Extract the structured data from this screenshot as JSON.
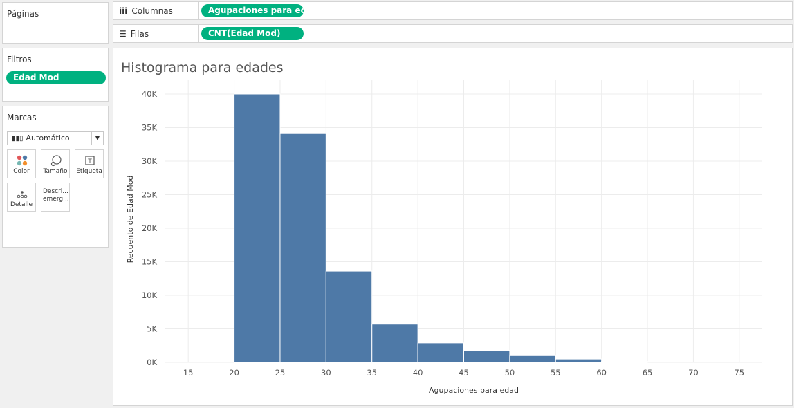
{
  "sidebar": {
    "pages_title": "Páginas",
    "filters_title": "Filtros",
    "filter_pill": "Edad Mod",
    "marks_title": "Marcas",
    "mark_type": "Automático",
    "mark_buttons": [
      {
        "label": "Color",
        "icon": "color-icon"
      },
      {
        "label": "Tamaño",
        "icon": "size-icon"
      },
      {
        "label": "Etiqueta",
        "icon": "label-icon"
      },
      {
        "label": "Detalle",
        "icon": "detail-icon"
      },
      {
        "label": "Descri... emerg...",
        "icon": "tooltip-icon"
      }
    ]
  },
  "shelves": {
    "columns_label": "Columnas",
    "columns_pill": "Agupaciones para ed..",
    "rows_label": "Filas",
    "rows_pill": "CNT(Edad Mod)"
  },
  "chart_data": {
    "type": "bar",
    "title": "Histograma para edades",
    "xlabel": "Agupaciones para edad",
    "ylabel": "Recuento de Edad Mod",
    "x_ticks": [
      "15",
      "20",
      "25",
      "30",
      "35",
      "40",
      "45",
      "50",
      "55",
      "60",
      "65",
      "70",
      "75"
    ],
    "y_ticks": [
      "0K",
      "5K",
      "10K",
      "15K",
      "20K",
      "25K",
      "30K",
      "35K",
      "40K"
    ],
    "bin_width": 5,
    "bins": [
      20,
      25,
      30,
      35,
      40,
      45,
      50,
      55,
      60
    ],
    "values": [
      40000,
      34100,
      13600,
      5700,
      2900,
      1800,
      1000,
      500,
      150
    ],
    "xlim": [
      12.5,
      77.5
    ],
    "ylim": [
      0,
      40000
    ],
    "grid": true,
    "bar_color": "#4e79a7"
  }
}
